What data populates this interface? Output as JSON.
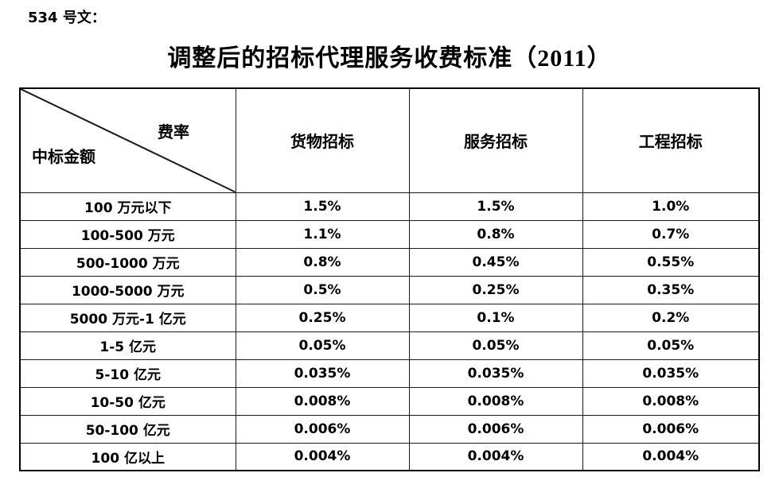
{
  "document": {
    "ref_label": "534 号文：",
    "title": "调整后的招标代理服务收费标准（2011）"
  },
  "table": {
    "corner": {
      "top_right": "费率",
      "bottom_left": "中标金额"
    },
    "column_headers": [
      "货物招标",
      "服务招标",
      "工程招标"
    ],
    "rows": [
      [
        "100 万元以下",
        "1.5%",
        "1.5%",
        "1.0%"
      ],
      [
        "100-500 万元",
        "1.1%",
        "0.8%",
        "0.7%"
      ],
      [
        "500-1000 万元",
        "0.8%",
        "0.45%",
        "0.55%"
      ],
      [
        "1000-5000 万元",
        "0.5%",
        "0.25%",
        "0.35%"
      ],
      [
        "5000 万元-1 亿元",
        "0.25%",
        "0.1%",
        "0.2%"
      ],
      [
        "1-5 亿元",
        "0.05%",
        "0.05%",
        "0.05%"
      ],
      [
        "5-10 亿元",
        "0.035%",
        "0.035%",
        "0.035%"
      ],
      [
        "10-50 亿元",
        "0.008%",
        "0.008%",
        "0.008%"
      ],
      [
        "50-100 亿元",
        "0.006%",
        "0.006%",
        "0.006%"
      ],
      [
        "100 亿以上",
        "0.004%",
        "0.004%",
        "0.004%"
      ]
    ]
  },
  "colors": {
    "text": "#000000",
    "border": "#1a1a1a",
    "background": "#ffffff"
  }
}
